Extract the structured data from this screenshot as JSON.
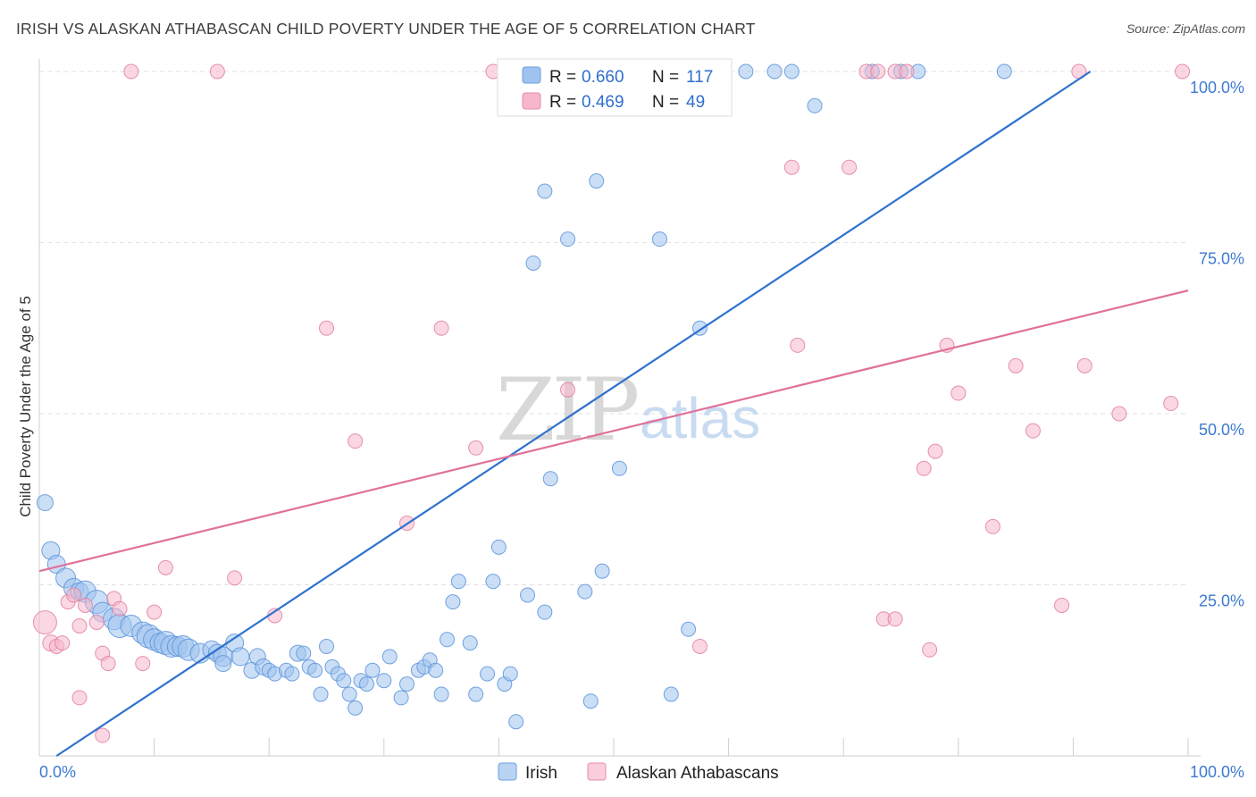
{
  "title": "IRISH VS ALASKAN ATHABASCAN CHILD POVERTY UNDER THE AGE OF 5 CORRELATION CHART",
  "source": "Source: ZipAtlas.com",
  "watermark": {
    "zip": "ZIP",
    "atlas": "atlas"
  },
  "legend": {
    "r_label": "R =",
    "n_label": "N =",
    "series": [
      {
        "r": "0.660",
        "n": "117",
        "color": "#9fc3ef",
        "stroke": "#6a9fe0"
      },
      {
        "r": "0.469",
        "n": "49",
        "color": "#f6b7cb",
        "stroke": "#e98aa9"
      }
    ]
  },
  "bottom_legend": [
    "Irish",
    "Alaskan Athabascans"
  ],
  "chart_data": {
    "type": "scatter",
    "xlabel": "",
    "ylabel": "Child Poverty Under the Age of 5",
    "xlim": [
      0,
      100
    ],
    "ylim": [
      0,
      100
    ],
    "x_tick_labels": [
      {
        "v": 0,
        "label": "0.0%"
      },
      {
        "v": 100,
        "label": "100.0%"
      }
    ],
    "y_tick_labels": [
      {
        "v": 25,
        "label": "25.0%"
      },
      {
        "v": 50,
        "label": "50.0%"
      },
      {
        "v": 75,
        "label": "75.0%"
      },
      {
        "v": 100,
        "label": "100.0%"
      }
    ],
    "grid": true,
    "series": [
      {
        "name": "Irish",
        "color": "#9fc3ef",
        "stroke": "#5b93da",
        "trend": {
          "x": [
            1.5,
            91.5
          ],
          "y": [
            0,
            100
          ],
          "color": "#2f72cf"
        },
        "points": [
          [
            0.5,
            37,
            9
          ],
          [
            1,
            30,
            10
          ],
          [
            1.5,
            28,
            10
          ],
          [
            2.3,
            26,
            11
          ],
          [
            3,
            24.5,
            11
          ],
          [
            3.5,
            24,
            10
          ],
          [
            4,
            24,
            12
          ],
          [
            5,
            22.5,
            13
          ],
          [
            5.5,
            21,
            11
          ],
          [
            6.5,
            20,
            12
          ],
          [
            7,
            19,
            13
          ],
          [
            8,
            19,
            12
          ],
          [
            9,
            18,
            12
          ],
          [
            9.5,
            17.5,
            13
          ],
          [
            10,
            17,
            12
          ],
          [
            10.5,
            16.5,
            11
          ],
          [
            11,
            16.5,
            13
          ],
          [
            11.5,
            16,
            12
          ],
          [
            12,
            16,
            11
          ],
          [
            12.5,
            16,
            12
          ],
          [
            13,
            15.5,
            12
          ],
          [
            14,
            15,
            11
          ],
          [
            15,
            15.5,
            10
          ],
          [
            15.5,
            15,
            10
          ],
          [
            16,
            14.5,
            11
          ],
          [
            17,
            16.5,
            10
          ],
          [
            17.5,
            14.5,
            10
          ],
          [
            16,
            13.5,
            9
          ],
          [
            18.5,
            12.5,
            9
          ],
          [
            19,
            14.5,
            9
          ],
          [
            19.5,
            13,
            9
          ],
          [
            20,
            12.5,
            8
          ],
          [
            20.5,
            12,
            8
          ],
          [
            21.5,
            12.5,
            8
          ],
          [
            22,
            12,
            8
          ],
          [
            22.5,
            15,
            9
          ],
          [
            23,
            15,
            8
          ],
          [
            23.5,
            13,
            8
          ],
          [
            24,
            12.5,
            8
          ],
          [
            25,
            16,
            8
          ],
          [
            25.5,
            13,
            8
          ],
          [
            26,
            12,
            8
          ],
          [
            24.5,
            9,
            8
          ],
          [
            26.5,
            11,
            8
          ],
          [
            27,
            9,
            8
          ],
          [
            27.5,
            7,
            8
          ],
          [
            28,
            11,
            8
          ],
          [
            28.5,
            10.5,
            8
          ],
          [
            29,
            12.5,
            8
          ],
          [
            30,
            11,
            8
          ],
          [
            30.5,
            14.5,
            8
          ],
          [
            31.5,
            8.5,
            8
          ],
          [
            32,
            10.5,
            8
          ],
          [
            33,
            12.5,
            8
          ],
          [
            33.5,
            13,
            8
          ],
          [
            34,
            14,
            8
          ],
          [
            34.5,
            12.5,
            8
          ],
          [
            35,
            9,
            8
          ],
          [
            35.5,
            17,
            8
          ],
          [
            36,
            22.5,
            8
          ],
          [
            36.5,
            25.5,
            8
          ],
          [
            37.5,
            16.5,
            8
          ],
          [
            38,
            9,
            8
          ],
          [
            39,
            12,
            8
          ],
          [
            39.5,
            25.5,
            8
          ],
          [
            40,
            30.5,
            8
          ],
          [
            40.5,
            10.5,
            8
          ],
          [
            41,
            12,
            8
          ],
          [
            41.5,
            5,
            8
          ],
          [
            42.5,
            23.5,
            8
          ],
          [
            44,
            21,
            8
          ],
          [
            44.5,
            40.5,
            8
          ],
          [
            47.5,
            24,
            8
          ],
          [
            48,
            8,
            8
          ],
          [
            49,
            27,
            8
          ],
          [
            50.5,
            42,
            8
          ],
          [
            55,
            9,
            8
          ],
          [
            56.5,
            18.5,
            8
          ],
          [
            43,
            72,
            8
          ],
          [
            44,
            82.5,
            8
          ],
          [
            46,
            75.5,
            8
          ],
          [
            48.5,
            84,
            8
          ],
          [
            54,
            75.5,
            8
          ],
          [
            57.5,
            62.5,
            8
          ],
          [
            42,
            100,
            8
          ],
          [
            44.5,
            100,
            8
          ],
          [
            47,
            100,
            8
          ],
          [
            49.5,
            100,
            8
          ],
          [
            51,
            100,
            8
          ],
          [
            53,
            100,
            8
          ],
          [
            55,
            100,
            8
          ],
          [
            57,
            100,
            8
          ],
          [
            59,
            100,
            8
          ],
          [
            61.5,
            100,
            8
          ],
          [
            64,
            100,
            8
          ],
          [
            65.5,
            100,
            8
          ],
          [
            67.5,
            95,
            8
          ],
          [
            72.5,
            100,
            8
          ],
          [
            75,
            100,
            8
          ],
          [
            76.5,
            100,
            8
          ],
          [
            84,
            100,
            8
          ]
        ]
      },
      {
        "name": "Alaskan Athabascans",
        "color": "#f6b7cb",
        "stroke": "#e27fa1",
        "trend": {
          "x": [
            0,
            100
          ],
          "y": [
            27,
            68
          ],
          "color": "#e0719a"
        },
        "points": [
          [
            0.5,
            19.5,
            13
          ],
          [
            1,
            16.5,
            9
          ],
          [
            1.5,
            16,
            8
          ],
          [
            2,
            16.5,
            8
          ],
          [
            2.5,
            22.5,
            8
          ],
          [
            3,
            23.5,
            8
          ],
          [
            3.5,
            19,
            8
          ],
          [
            4,
            22,
            8
          ],
          [
            5,
            19.5,
            8
          ],
          [
            5.5,
            15,
            8
          ],
          [
            6,
            13.5,
            8
          ],
          [
            3.5,
            8.5,
            8
          ],
          [
            5.5,
            3,
            8
          ],
          [
            6.5,
            23,
            8
          ],
          [
            7,
            21.5,
            8
          ],
          [
            9,
            13.5,
            8
          ],
          [
            10,
            21,
            8
          ],
          [
            11,
            27.5,
            8
          ],
          [
            8,
            100,
            8
          ],
          [
            15.5,
            100,
            8
          ],
          [
            17,
            26,
            8
          ],
          [
            20.5,
            20.5,
            8
          ],
          [
            25,
            62.5,
            8
          ],
          [
            27.5,
            46,
            8
          ],
          [
            32,
            34,
            8
          ],
          [
            35,
            62.5,
            8
          ],
          [
            38,
            45,
            8
          ],
          [
            39.5,
            100,
            8
          ],
          [
            46,
            53.5,
            8
          ],
          [
            57.5,
            16,
            8
          ],
          [
            65.5,
            86,
            8
          ],
          [
            66,
            60,
            8
          ],
          [
            70.5,
            86,
            8
          ],
          [
            72,
            100,
            8
          ],
          [
            73,
            100,
            8
          ],
          [
            74.5,
            100,
            8
          ],
          [
            75.5,
            100,
            8
          ],
          [
            73.5,
            20,
            8
          ],
          [
            74.5,
            20,
            8
          ],
          [
            77,
            42,
            8
          ],
          [
            77.5,
            15.5,
            8
          ],
          [
            78,
            44.5,
            8
          ],
          [
            79,
            60,
            8
          ],
          [
            80,
            53,
            8
          ],
          [
            83,
            33.5,
            8
          ],
          [
            85,
            57,
            8
          ],
          [
            86.5,
            47.5,
            8
          ],
          [
            89,
            22,
            8
          ],
          [
            90.5,
            100,
            8
          ],
          [
            91,
            57,
            8
          ],
          [
            94,
            50,
            8
          ],
          [
            98.5,
            51.5,
            8
          ],
          [
            99.5,
            100,
            8
          ]
        ]
      }
    ]
  }
}
